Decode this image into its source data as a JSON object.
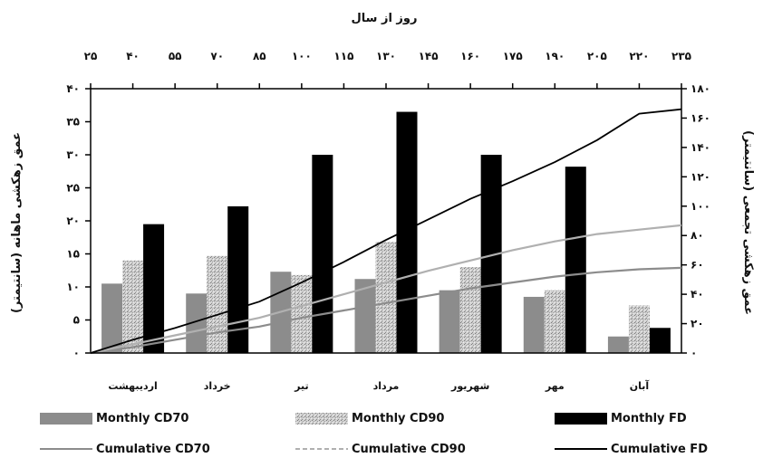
{
  "chart_data": {
    "type": "bar",
    "categories": [
      "اردیبهشت",
      "خرداد",
      "تیر",
      "مرداد",
      "شهریور",
      "مهر",
      "آبان"
    ],
    "series": [
      {
        "name": "Monthly CD70",
        "kind": "bar",
        "axis": "left",
        "color": "#8c8c8c",
        "values": [
          10.5,
          9,
          12.3,
          11.2,
          9.5,
          8.5,
          2.5
        ]
      },
      {
        "name": "Monthly CD90",
        "kind": "bar",
        "axis": "left",
        "color": "#c4c4c4",
        "pattern": "speckled",
        "values": [
          14,
          14.7,
          11.8,
          16.8,
          13,
          9.5,
          7.2
        ]
      },
      {
        "name": "Monthly FD",
        "kind": "bar",
        "axis": "left",
        "color": "#000000",
        "values": [
          19.5,
          22.2,
          30,
          36.5,
          30,
          28.2,
          3.8
        ]
      },
      {
        "name": "Cumulative CD70",
        "kind": "line",
        "axis": "right",
        "color": "#8c8c8c",
        "x": [
          25,
          40,
          55,
          70,
          85,
          100,
          115,
          130,
          145,
          160,
          175,
          190,
          205,
          220,
          235
        ],
        "values": [
          0,
          4,
          9,
          14,
          18,
          24,
          29,
          34,
          39,
          44,
          48,
          52,
          55,
          57,
          58
        ]
      },
      {
        "name": "Cumulative CD90",
        "kind": "line",
        "axis": "right",
        "color": "#b0b0b0",
        "x": [
          25,
          40,
          55,
          70,
          85,
          100,
          115,
          130,
          145,
          160,
          175,
          190,
          205,
          220,
          235
        ],
        "values": [
          0,
          6,
          12,
          18,
          24,
          32,
          40,
          48,
          56,
          63,
          70,
          76,
          81,
          84,
          87
        ]
      },
      {
        "name": "Cumulative FD",
        "kind": "line",
        "axis": "right",
        "color": "#000000",
        "x": [
          25,
          40,
          55,
          70,
          85,
          100,
          115,
          130,
          145,
          160,
          175,
          190,
          205,
          220,
          235
        ],
        "values": [
          0,
          9,
          17,
          26,
          35,
          48,
          62,
          77,
          91,
          105,
          117,
          130,
          145,
          163,
          166
        ]
      }
    ],
    "top_axis": {
      "title": "روز از سال",
      "min": 25,
      "max": 235,
      "ticks": [
        25,
        40,
        55,
        70,
        85,
        100,
        115,
        130,
        145,
        160,
        175,
        190,
        205,
        220,
        235
      ],
      "tick_labels": [
        "۲۵",
        "۴۰",
        "۵۵",
        "۷۰",
        "۸۵",
        "۱۰۰",
        "۱۱۵",
        "۱۳۰",
        "۱۴۵",
        "۱۶۰",
        "۱۷۵",
        "۱۹۰",
        "۲۰۵",
        "۲۲۰",
        "۲۳۵"
      ]
    },
    "left_axis": {
      "title": "عمق زهکشی ماهانه (سانتیمتر)",
      "min": 0,
      "max": 40,
      "ticks": [
        0,
        5,
        10,
        15,
        20,
        25,
        30,
        35,
        40
      ],
      "tick_labels": [
        "۰",
        "۵",
        "۱۰",
        "۱۵",
        "۲۰",
        "۲۵",
        "۳۰",
        "۳۵",
        "۴۰"
      ]
    },
    "right_axis": {
      "title": "عمق زهکشی تجمعی (سانتیمتر)",
      "min": 0,
      "max": 180,
      "ticks": [
        0,
        20,
        40,
        60,
        80,
        100,
        120,
        140,
        160,
        180
      ],
      "tick_labels": [
        "۰",
        "۲۰",
        "۴۰",
        "۶۰",
        "۸۰",
        "۱۰۰",
        "۱۲۰",
        "۱۴۰",
        "۱۶۰",
        "۱۸۰"
      ]
    },
    "grid": false,
    "legend_position": "bottom",
    "legend": [
      "Monthly CD70",
      "Monthly CD90",
      "Monthly FD",
      "Cumulative CD70",
      "Cumulative CD90",
      "Cumulative FD"
    ]
  }
}
